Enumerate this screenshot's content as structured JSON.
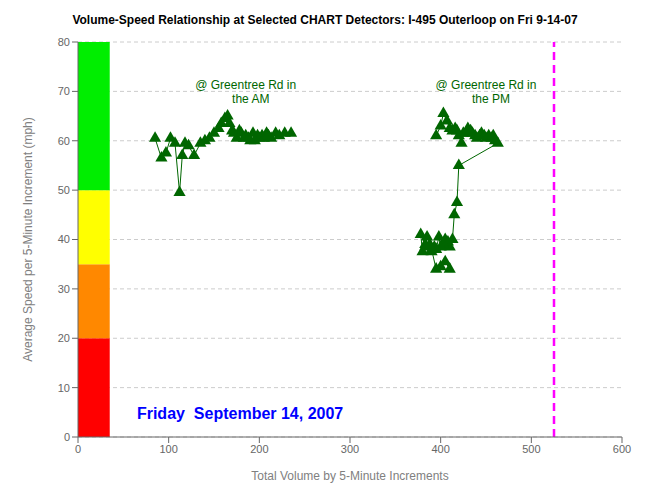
{
  "chart_data": {
    "type": "line",
    "title": "Volume-Speed Relationship at Selected CHART Detectors: I-495 Outerloop on Fri 9-14-07",
    "x_label": "Total Volume by 5-Minute Increments",
    "y_label": "Average Speed per 5-Minute Increment (mph)",
    "xlim": [
      0,
      600
    ],
    "ylim": [
      0,
      80
    ],
    "xticks": [
      0,
      100,
      200,
      300,
      400,
      500,
      600
    ],
    "yticks": [
      0,
      10,
      20,
      30,
      40,
      50,
      60,
      70,
      80
    ],
    "grid": true,
    "series": [
      {
        "color": "#006600",
        "marker": "triangle",
        "line_style": "solid",
        "x": [
          85,
          92,
          97,
          102,
          107,
          112,
          115,
          118,
          122,
          128,
          135,
          140,
          145,
          150,
          155,
          158,
          162,
          165,
          167,
          170,
          172,
          175,
          178,
          180,
          183,
          185,
          188,
          190,
          193,
          195,
          198,
          200,
          203,
          205,
          208,
          210,
          213,
          218,
          222,
          228,
          235
        ],
        "values": [
          60.5,
          56.5,
          57.5,
          60.5,
          59.5,
          49.5,
          57.0,
          59.5,
          59.0,
          57.0,
          59.5,
          60.0,
          60.5,
          61.5,
          62.5,
          63.5,
          64.5,
          65.0,
          63.5,
          62.0,
          61.5,
          60.5,
          62.0,
          61.5,
          60.5,
          61.0,
          60.5,
          60.0,
          61.5,
          60.0,
          61.0,
          60.5,
          61.0,
          60.5,
          61.5,
          61.0,
          60.5,
          61.5,
          61.0,
          61.5,
          61.5
        ]
      },
      {
        "color": "#006600",
        "marker": "triangle",
        "line_style": "solid",
        "x": [
          395,
          400,
          403,
          407,
          410,
          413,
          416,
          418,
          420,
          423,
          425,
          428,
          430,
          433,
          435,
          438,
          440,
          443,
          445,
          448,
          450,
          453,
          456,
          458,
          460,
          463,
          420,
          418,
          415,
          413,
          410,
          408,
          405,
          403,
          400,
          398,
          395,
          393,
          390,
          388,
          385,
          383,
          380,
          378,
          383,
          390,
          395,
          400,
          405,
          410
        ],
        "values": [
          61.0,
          63.0,
          65.5,
          64.0,
          62.5,
          62.0,
          62.5,
          62.0,
          61.0,
          59.5,
          61.5,
          61.5,
          62.5,
          62.0,
          61.5,
          61.0,
          60.5,
          61.0,
          61.5,
          61.0,
          60.5,
          61.0,
          60.5,
          61.0,
          60.0,
          59.5,
          55.0,
          47.5,
          45.0,
          40.0,
          38.5,
          39.5,
          40.0,
          39.0,
          38.5,
          40.5,
          38.0,
          38.5,
          37.5,
          39.0,
          40.5,
          38.5,
          37.5,
          41.0,
          39.0,
          38.0,
          34.0,
          34.5,
          35.5,
          34.0
        ]
      }
    ],
    "bands": [
      {
        "x": [
          0,
          35
        ],
        "ymin": 0,
        "ymax": 20,
        "color": "#FF0000"
      },
      {
        "x": [
          0,
          35
        ],
        "ymin": 20,
        "ymax": 35,
        "color": "#FF8800"
      },
      {
        "x": [
          0,
          35
        ],
        "ymin": 35,
        "ymax": 50,
        "color": "#FFFF00"
      },
      {
        "x": [
          0,
          35
        ],
        "ymin": 50,
        "ymax": 80,
        "color": "#00EE00"
      }
    ],
    "reference_lines": [
      {
        "x": 525,
        "color": "#FF00FF",
        "line_style": "dashed"
      }
    ],
    "annotations": [
      {
        "text": "@ Greentree Rd in\n   the AM",
        "x": 185,
        "y": 73,
        "color": "#006600"
      },
      {
        "text": "@ Greentree Rd in\n   the PM",
        "x": 450,
        "y": 73,
        "color": "#006600"
      },
      {
        "text": "Friday  September 14, 2007",
        "x": 65,
        "y": 3,
        "color": "#0000FF"
      }
    ]
  }
}
